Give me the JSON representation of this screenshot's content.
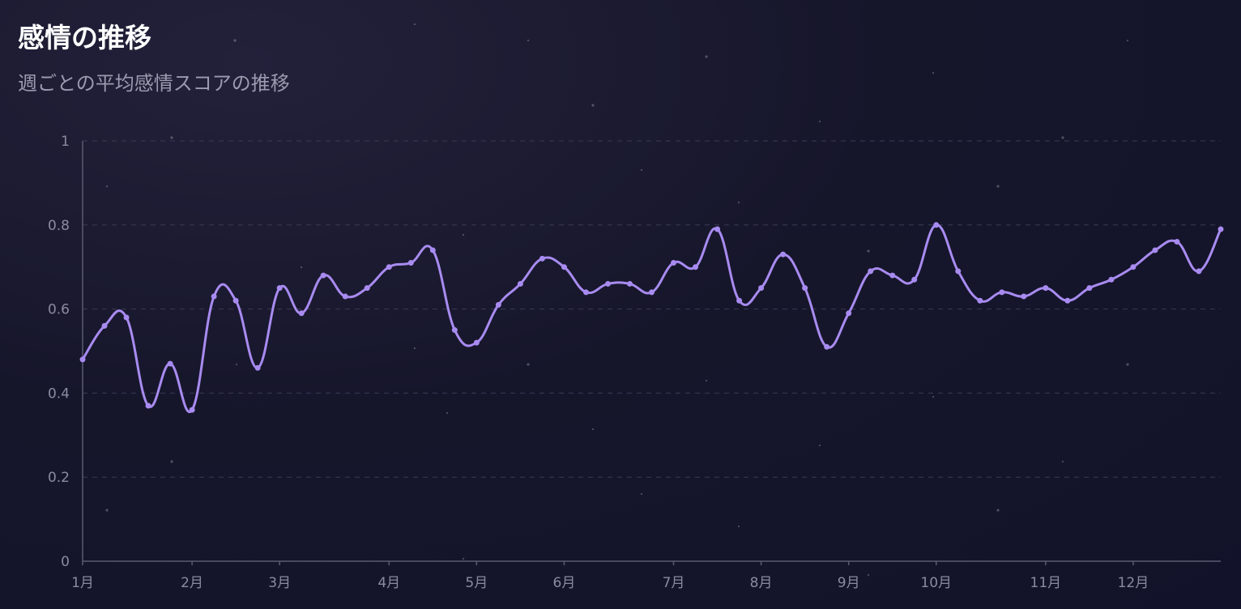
{
  "header": {
    "title": "感情の推移",
    "subtitle": "週ごとの平均感情スコアの推移"
  },
  "colors": {
    "line": "#a88bf0",
    "background": "#16162b",
    "grid": "#3a3a55"
  },
  "chart_data": {
    "type": "line",
    "title": "感情の推移",
    "subtitle": "週ごとの平均感情スコアの推移",
    "xlabel": "",
    "ylabel": "",
    "ylim": [
      0,
      1
    ],
    "yticks": [
      "0",
      "0.2",
      "0.4",
      "0.6",
      "0.8",
      "1"
    ],
    "yticks_values": [
      0,
      0.2,
      0.4,
      0.6,
      0.8,
      1
    ],
    "x_tick_labels": [
      {
        "label": "1月",
        "week": 0
      },
      {
        "label": "2月",
        "week": 5
      },
      {
        "label": "3月",
        "week": 9
      },
      {
        "label": "4月",
        "week": 14
      },
      {
        "label": "5月",
        "week": 18
      },
      {
        "label": "6月",
        "week": 22
      },
      {
        "label": "7月",
        "week": 27
      },
      {
        "label": "8月",
        "week": 31
      },
      {
        "label": "9月",
        "week": 35
      },
      {
        "label": "10月",
        "week": 39
      },
      {
        "label": "11月",
        "week": 44
      },
      {
        "label": "12月",
        "week": 48
      }
    ],
    "grid": true,
    "grid_style": "dashed horizontal",
    "series": [
      {
        "values": [
          0.48,
          0.56,
          0.58,
          0.37,
          0.47,
          0.36,
          0.63,
          0.62,
          0.46,
          0.65,
          0.59,
          0.68,
          0.63,
          0.65,
          0.7,
          0.71,
          0.74,
          0.55,
          0.52,
          0.61,
          0.66,
          0.72,
          0.7,
          0.64,
          0.66,
          0.66,
          0.64,
          0.71,
          0.7,
          0.79,
          0.62,
          0.65,
          0.73,
          0.65,
          0.51,
          0.59,
          0.69,
          0.68,
          0.67,
          0.8,
          0.69,
          0.62,
          0.64,
          0.63,
          0.65,
          0.62,
          0.65,
          0.67,
          0.7,
          0.74,
          0.76,
          0.69,
          0.79
        ]
      }
    ]
  }
}
